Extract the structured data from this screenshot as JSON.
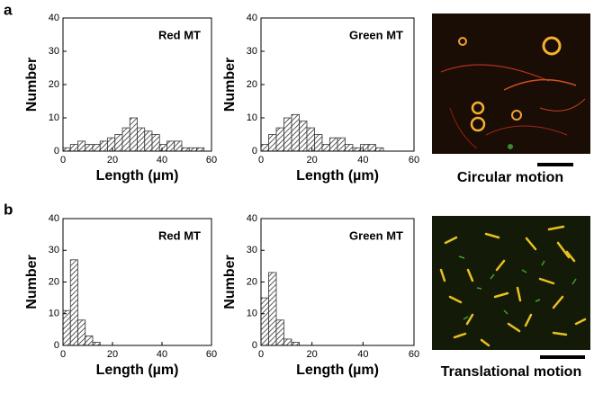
{
  "panel_labels": [
    "a",
    "b"
  ],
  "captions": [
    "Circular motion",
    "Translational motion"
  ],
  "chart_data": [
    {
      "type": "histogram",
      "title": "Red MT",
      "xlabel": "Length (µm)",
      "ylabel": "Number",
      "bins": [
        0,
        3,
        6,
        9,
        12,
        15,
        18,
        21,
        24,
        27,
        30,
        33,
        36,
        39,
        42,
        45,
        48,
        51,
        54,
        57
      ],
      "values": [
        1,
        2,
        3,
        2,
        2,
        3,
        4,
        5,
        7,
        10,
        7,
        6,
        5,
        2,
        3,
        3,
        1,
        1,
        1
      ],
      "color": "#333333",
      "xlim": [
        0,
        60
      ],
      "xticks": [
        0,
        20,
        40,
        60
      ],
      "ylim": [
        0,
        40
      ],
      "yticks": [
        0,
        10,
        20,
        30,
        40
      ]
    },
    {
      "type": "histogram",
      "title": "Green MT",
      "xlabel": "Length (µm)",
      "ylabel": "Number",
      "bins": [
        0,
        3,
        6,
        9,
        12,
        15,
        18,
        21,
        24,
        27,
        30,
        33,
        36,
        39,
        42,
        45,
        48
      ],
      "values": [
        2,
        5,
        7,
        10,
        11,
        9,
        7,
        5,
        2,
        4,
        4,
        2,
        1,
        2,
        2,
        1
      ],
      "color": "#333333",
      "xlim": [
        0,
        60
      ],
      "xticks": [
        0,
        20,
        40,
        60
      ],
      "ylim": [
        0,
        40
      ],
      "yticks": [
        0,
        10,
        20,
        30,
        40
      ]
    },
    {
      "type": "histogram",
      "title": "Red MT",
      "xlabel": "Length (µm)",
      "ylabel": "Number",
      "bins": [
        0,
        3,
        6,
        9,
        12,
        15
      ],
      "values": [
        11,
        27,
        8,
        3,
        1
      ],
      "color": "#333333",
      "xlim": [
        0,
        60
      ],
      "xticks": [
        0,
        20,
        40,
        60
      ],
      "ylim": [
        0,
        40
      ],
      "yticks": [
        0,
        10,
        20,
        30,
        40
      ]
    },
    {
      "type": "histogram",
      "title": "Green MT",
      "xlabel": "Length (µm)",
      "ylabel": "Number",
      "bins": [
        0,
        3,
        6,
        9,
        12,
        15
      ],
      "values": [
        15,
        23,
        8,
        2,
        1
      ],
      "color": "#333333",
      "xlim": [
        0,
        60
      ],
      "xticks": [
        0,
        20,
        40,
        60
      ],
      "ylim": [
        0,
        40
      ],
      "yticks": [
        0,
        10,
        20,
        30,
        40
      ]
    }
  ]
}
